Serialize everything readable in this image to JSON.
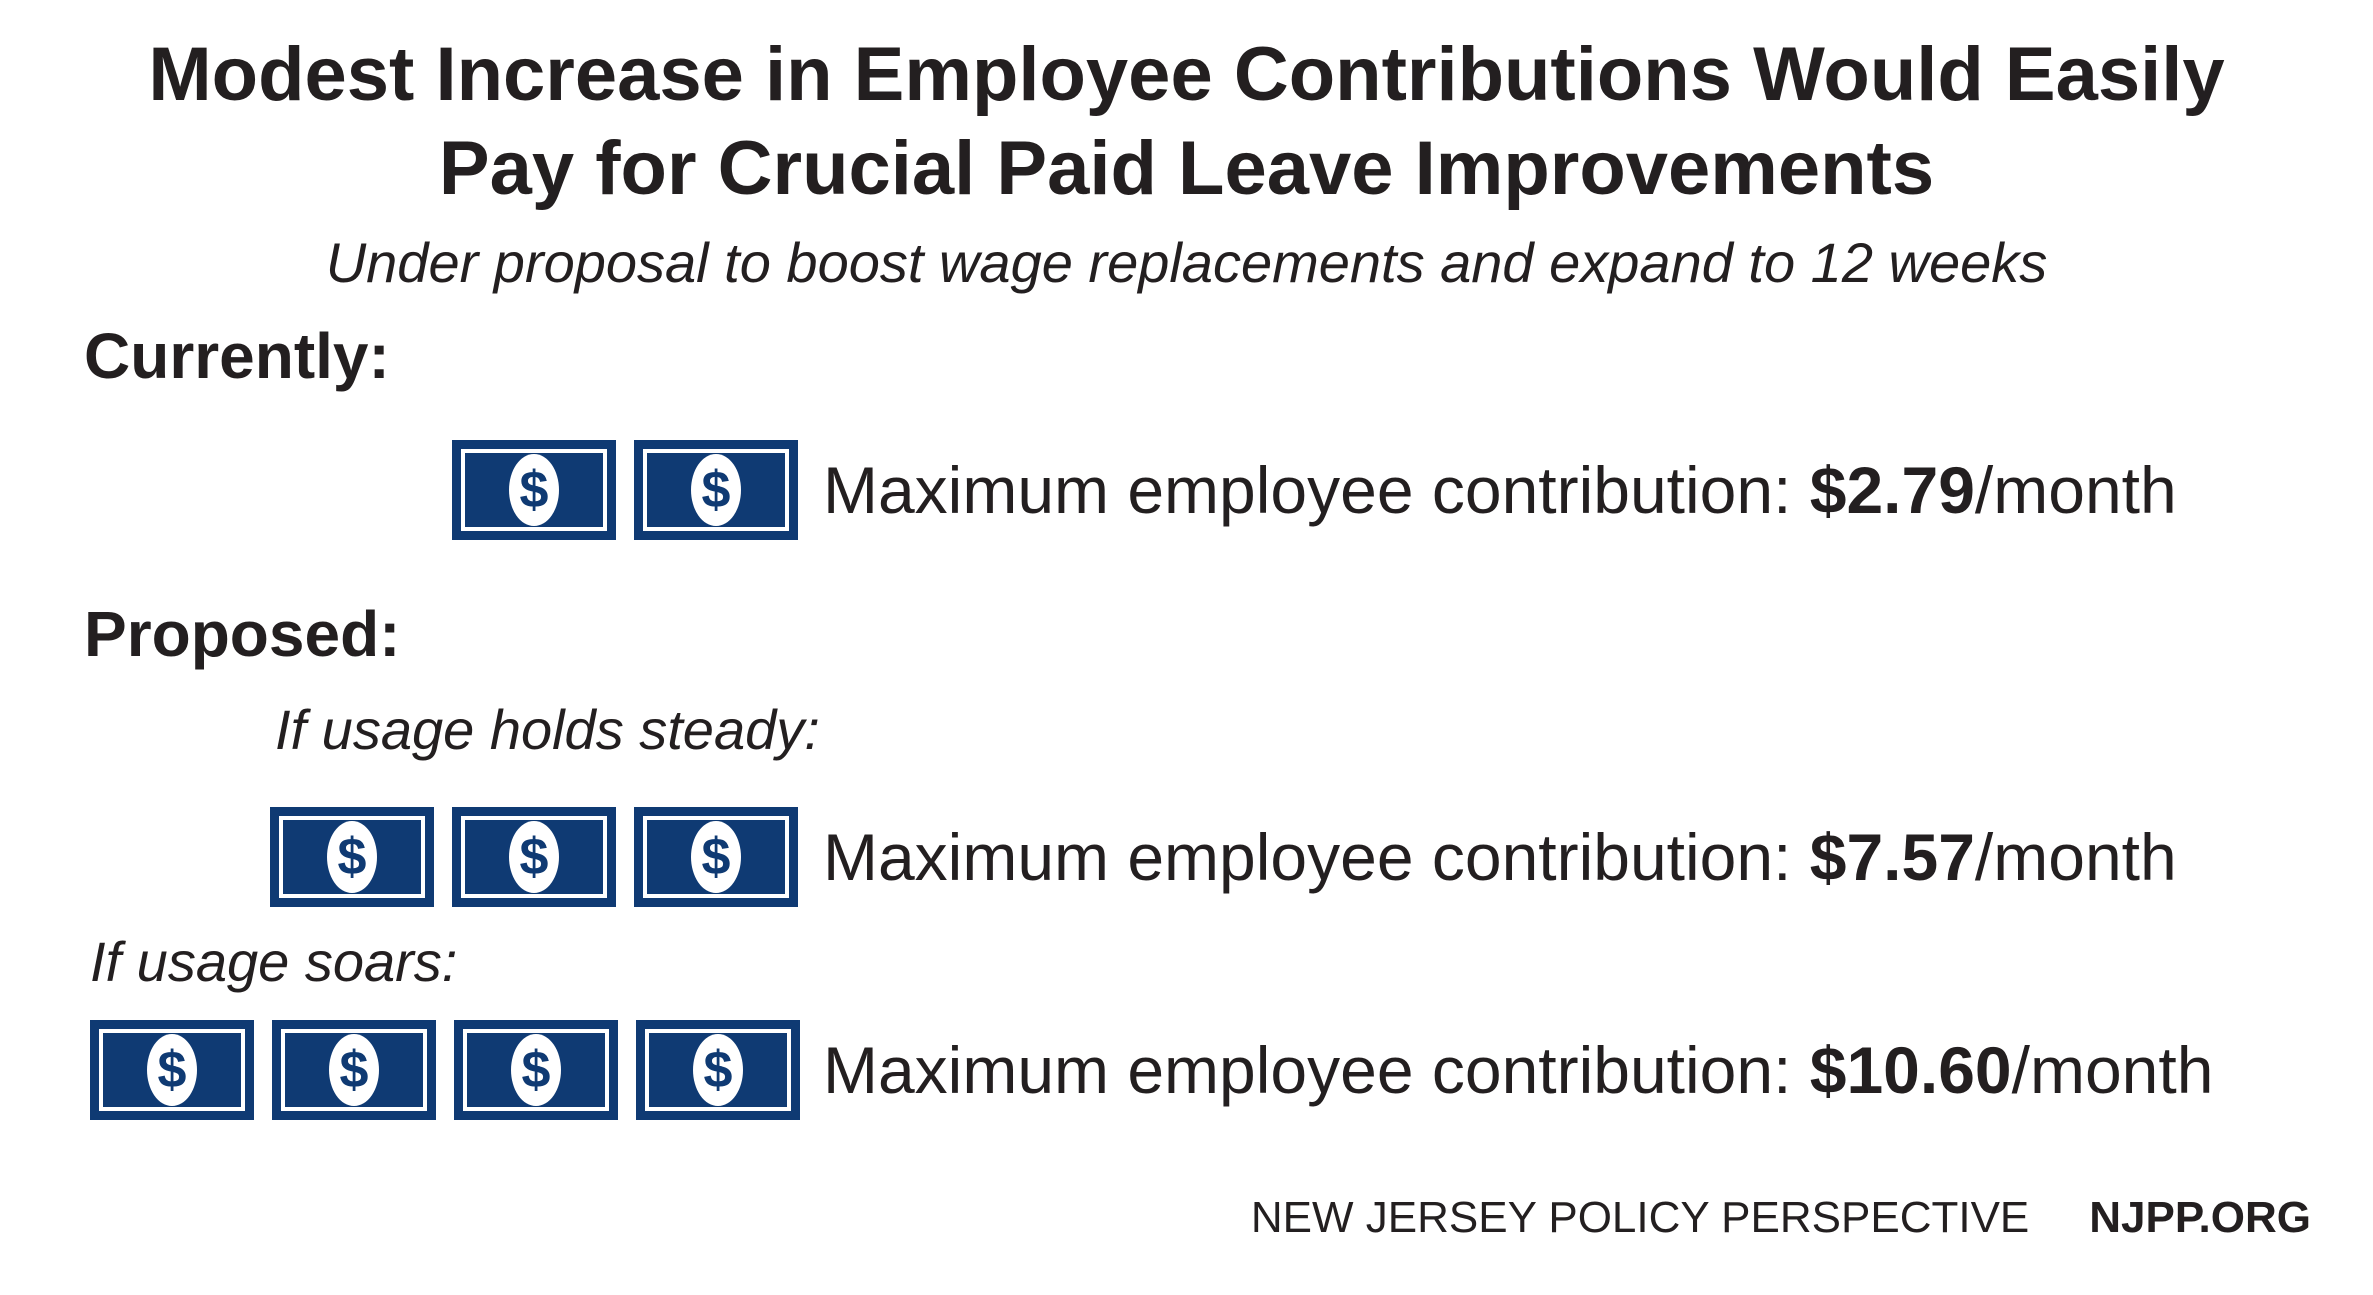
{
  "title": {
    "line1": "Modest Increase in Employee Contributions Would Easily",
    "line2": "Pay for Crucial Paid Leave Improvements"
  },
  "subtitle": "Under proposal to boost wage replacements and expand to 12 weeks",
  "currently": {
    "heading": "Currently:",
    "bill_count": 2,
    "label": "Maximum employee contribution: ",
    "amount": "$2.79",
    "unit": "/month"
  },
  "proposed": {
    "heading": "Proposed:",
    "steady": {
      "scenario": "If usage holds steady:",
      "bill_count": 3,
      "label": "Maximum employee contribution: ",
      "amount": "$7.57",
      "unit": "/month"
    },
    "soars": {
      "scenario": "If usage soars:",
      "bill_count": 4,
      "label": "Maximum employee contribution: ",
      "amount": "$10.60",
      "unit": "/month"
    }
  },
  "bill_symbol": "$",
  "bill_icon": "dollar-bill-icon",
  "colors": {
    "bill": "#0f3a73",
    "text": "#231f20"
  },
  "footer": {
    "org": "NEW JERSEY POLICY PERSPECTIVE",
    "site": "NJPP.ORG"
  }
}
